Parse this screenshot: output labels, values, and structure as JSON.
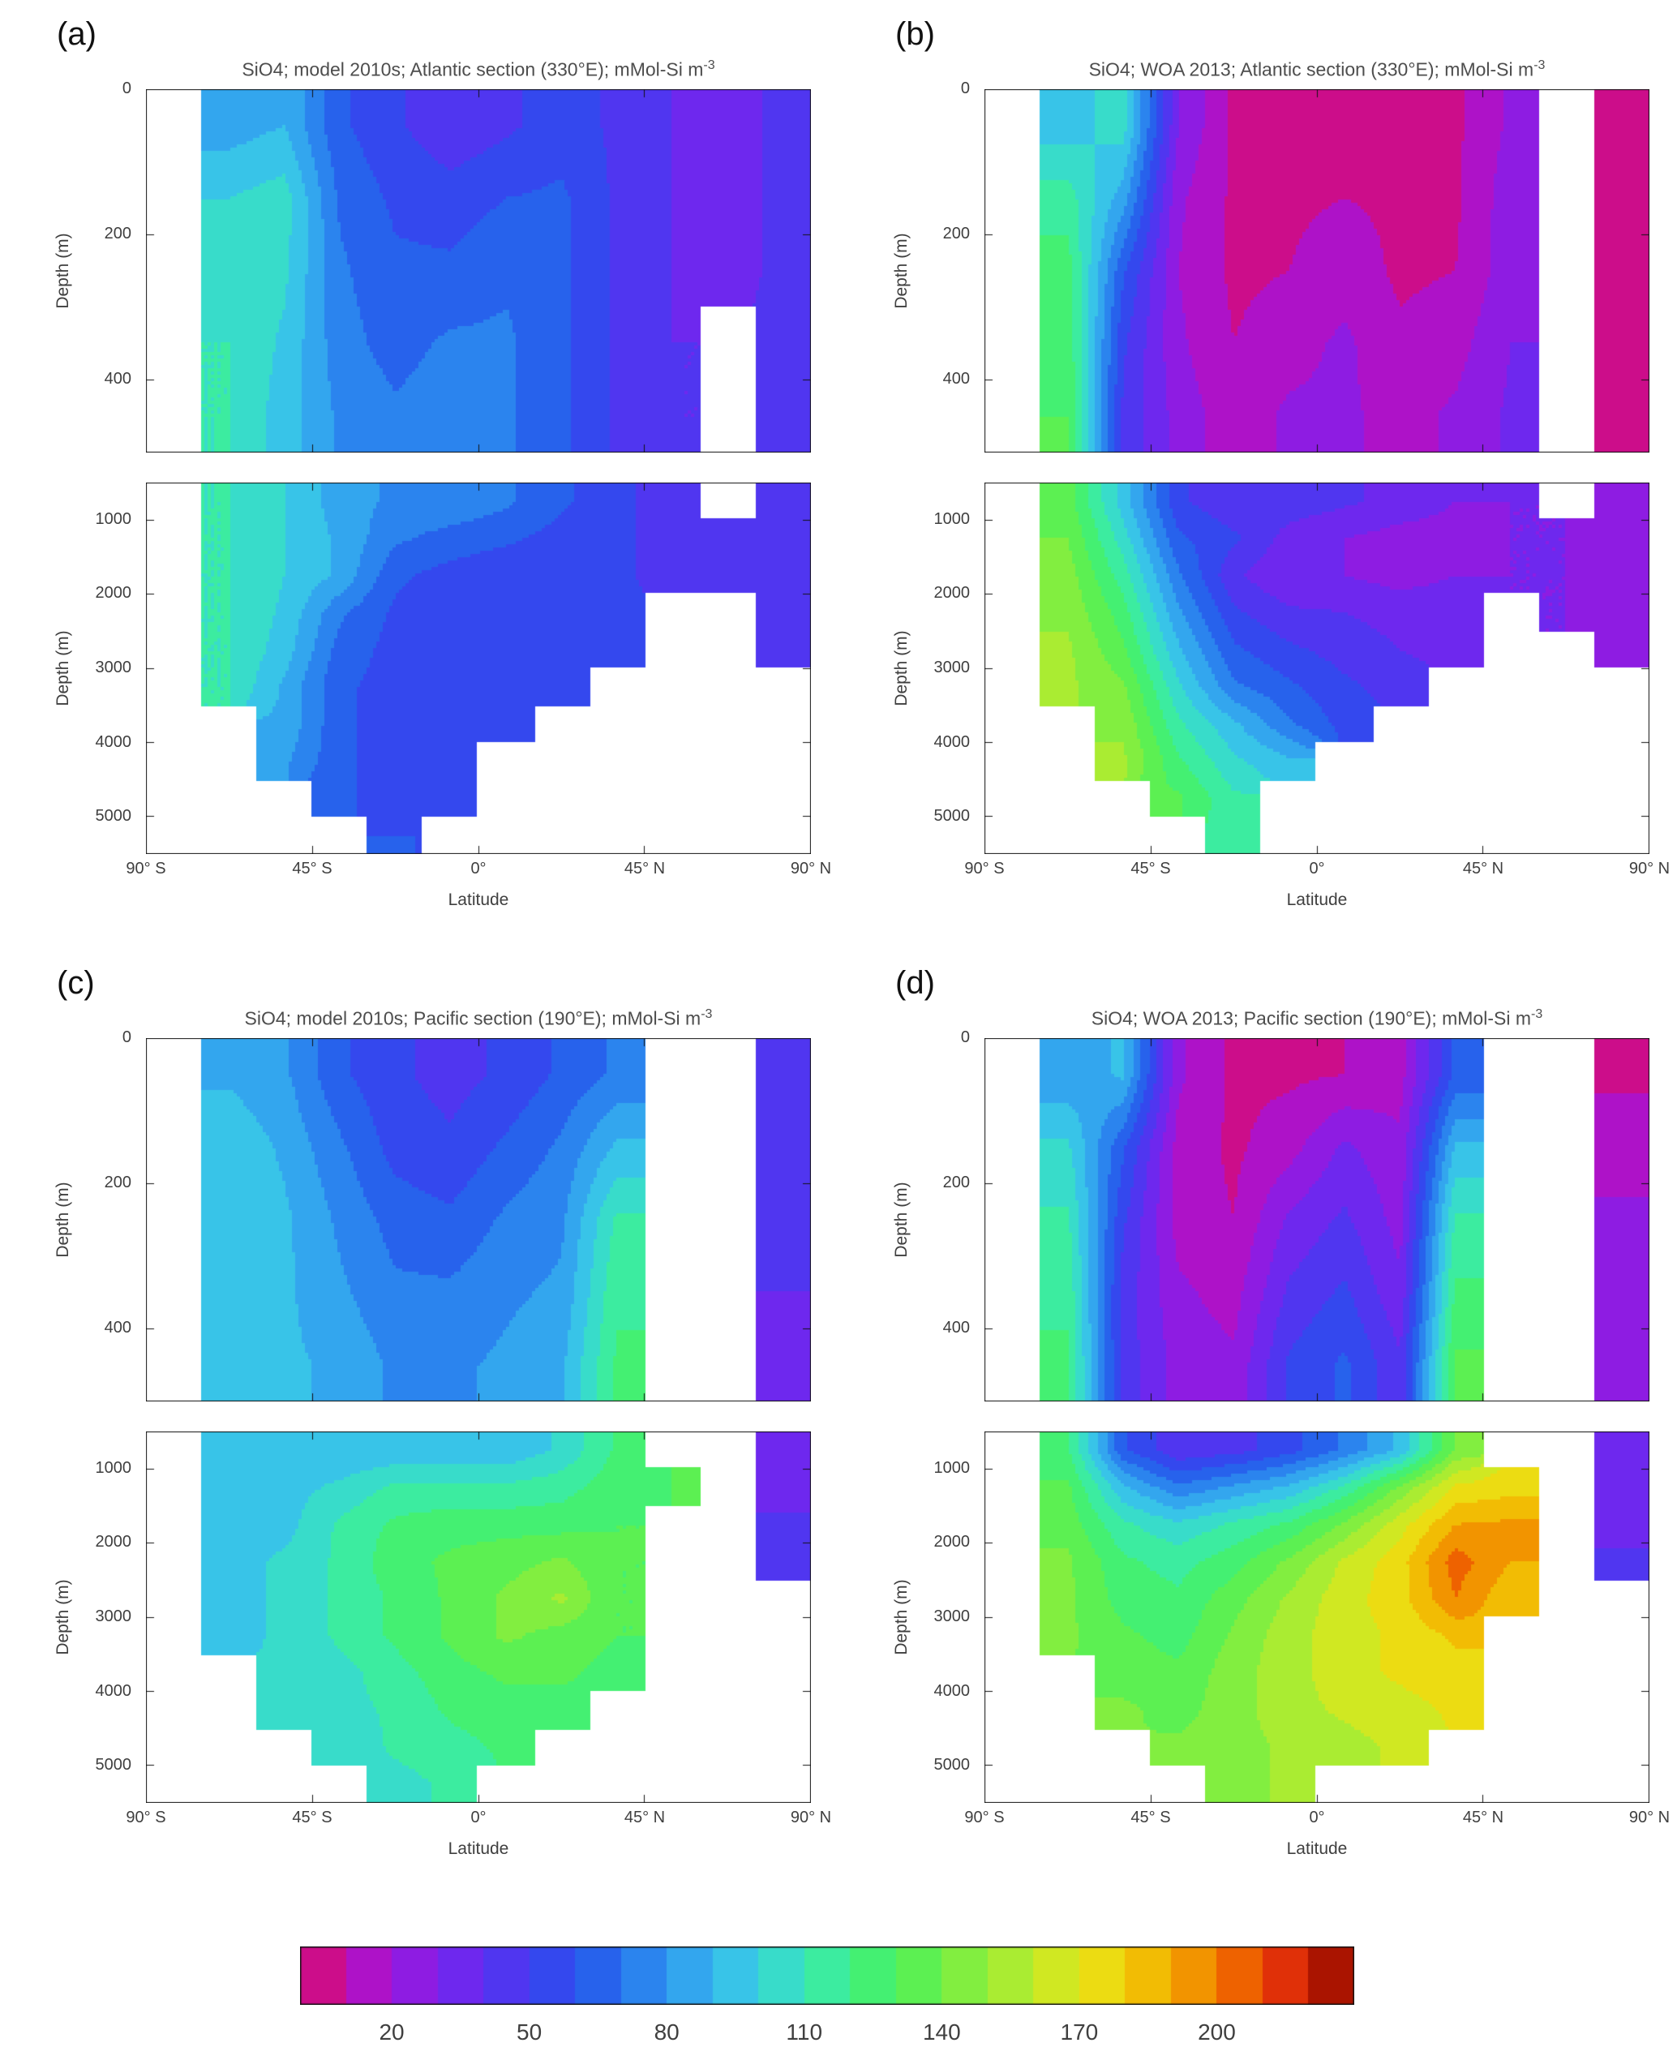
{
  "figure_name": "SiO4 ocean sections: model vs WOA 2013",
  "chart_data": {
    "type": "heatmap",
    "units": "mMol-Si m^-3",
    "colormap": {
      "range": [
        0,
        230
      ],
      "step": 10,
      "colors": [
        "#cc0d8a",
        "#ae12c8",
        "#8e1ce2",
        "#6e28ee",
        "#5036f0",
        "#3448ee",
        "#2762ec",
        "#2b84ee",
        "#33a6ee",
        "#38c4e8",
        "#38dcca",
        "#3ceca0",
        "#44f072",
        "#5cf052",
        "#82ee40",
        "#aaec32",
        "#d0e822",
        "#ecdc12",
        "#f2bc04",
        "#f29400",
        "#ee6200",
        "#e03008",
        "#aa1400"
      ]
    },
    "x_axis": {
      "label": "Latitude",
      "range": [
        -90,
        90
      ],
      "ticks": [
        {
          "value": -90,
          "label": "90° S"
        },
        {
          "value": -45,
          "label": "45° S"
        },
        {
          "value": 0,
          "label": "0°"
        },
        {
          "value": 45,
          "label": "45° N"
        },
        {
          "value": 90,
          "label": "90° N"
        }
      ],
      "lat_centers": [
        -82.5,
        -67.5,
        -52.5,
        -37.5,
        -22.5,
        -7.5,
        7.5,
        22.5,
        37.5,
        52.5,
        67.5,
        82.5
      ]
    },
    "y_axis": {
      "label": "Depth (m)",
      "upper_range": [
        0,
        500
      ],
      "upper_ticks": [
        0,
        200,
        400
      ],
      "upper_depth_centers": [
        50,
        150,
        250,
        350,
        450
      ],
      "lower_range": [
        500,
        5500
      ],
      "lower_ticks": [
        1000,
        2000,
        3000,
        4000,
        5000
      ],
      "lower_depth_centers": [
        750,
        1250,
        1750,
        2250,
        2750,
        3250,
        3750,
        4250,
        4750,
        5250
      ]
    },
    "panels": [
      {
        "id": "a",
        "label": "(a)",
        "title": "SiO4; model 2010s; Atlantic section (330°E); mMol-Si m",
        "title_sup": "-3",
        "upper_values": [
          [
            null,
            85,
            90,
            62,
            52,
            42,
            48,
            55,
            48,
            40,
            32,
            45
          ],
          [
            null,
            100,
            105,
            68,
            58,
            55,
            60,
            62,
            48,
            40,
            32,
            45
          ],
          [
            null,
            108,
            102,
            72,
            62,
            62,
            68,
            62,
            48,
            40,
            32,
            45
          ],
          [
            null,
            110,
            98,
            74,
            66,
            72,
            72,
            62,
            48,
            40,
            null,
            45
          ],
          [
            null,
            110,
            95,
            78,
            72,
            76,
            72,
            62,
            48,
            40,
            null,
            45
          ]
        ],
        "lower_values": [
          [
            null,
            110,
            100,
            85,
            78,
            78,
            72,
            62,
            52,
            46,
            null,
            42
          ],
          [
            null,
            110,
            100,
            88,
            72,
            66,
            62,
            56,
            52,
            46,
            50,
            42
          ],
          [
            null,
            110,
            100,
            88,
            62,
            56,
            52,
            52,
            52,
            46,
            50,
            42
          ],
          [
            null,
            110,
            98,
            72,
            58,
            52,
            52,
            52,
            52,
            null,
            null,
            42
          ],
          [
            null,
            110,
            95,
            66,
            56,
            52,
            52,
            52,
            52,
            null,
            null,
            42
          ],
          [
            null,
            110,
            88,
            62,
            56,
            52,
            52,
            52,
            null,
            null,
            null,
            null
          ],
          [
            null,
            null,
            88,
            62,
            56,
            52,
            52,
            null,
            null,
            null,
            null,
            null
          ],
          [
            null,
            null,
            82,
            62,
            56,
            56,
            null,
            null,
            null,
            null,
            null,
            null
          ],
          [
            null,
            null,
            null,
            62,
            56,
            56,
            null,
            null,
            null,
            null,
            null,
            null
          ],
          [
            null,
            null,
            null,
            null,
            60,
            null,
            null,
            null,
            null,
            null,
            null,
            null
          ]
        ]
      },
      {
        "id": "b",
        "label": "(b)",
        "title": "SiO4; WOA 2013; Atlantic section (330°E); mMol-Si m",
        "title_sup": "-3",
        "upper_values": [
          [
            null,
            95,
            105,
            30,
            8,
            8,
            8,
            8,
            8,
            22,
            null,
            8
          ],
          [
            null,
            115,
            85,
            22,
            8,
            8,
            10,
            8,
            8,
            26,
            null,
            8
          ],
          [
            null,
            125,
            62,
            20,
            8,
            10,
            16,
            8,
            10,
            26,
            null,
            8
          ],
          [
            null,
            128,
            52,
            22,
            10,
            16,
            22,
            12,
            16,
            30,
            null,
            8
          ],
          [
            null,
            130,
            48,
            26,
            14,
            22,
            22,
            16,
            22,
            32,
            null,
            8
          ]
        ],
        "lower_values": [
          [
            null,
            135,
            95,
            52,
            42,
            46,
            42,
            36,
            30,
            30,
            null,
            22
          ],
          [
            null,
            140,
            105,
            62,
            52,
            36,
            30,
            26,
            26,
            30,
            30,
            22
          ],
          [
            null,
            145,
            115,
            72,
            42,
            30,
            30,
            26,
            30,
            30,
            30,
            22
          ],
          [
            null,
            148,
            125,
            82,
            52,
            42,
            40,
            36,
            36,
            null,
            30,
            22
          ],
          [
            null,
            152,
            132,
            92,
            62,
            52,
            46,
            40,
            36,
            null,
            null,
            26
          ],
          [
            null,
            152,
            142,
            102,
            72,
            62,
            52,
            46,
            null,
            null,
            null,
            null
          ],
          [
            null,
            null,
            148,
            112,
            92,
            72,
            56,
            null,
            null,
            null,
            null,
            null
          ],
          [
            null,
            null,
            152,
            122,
            102,
            92,
            null,
            null,
            null,
            null,
            null,
            null
          ],
          [
            null,
            null,
            null,
            132,
            112,
            null,
            null,
            null,
            null,
            null,
            null,
            null
          ],
          [
            null,
            null,
            null,
            null,
            118,
            null,
            null,
            null,
            null,
            null,
            null,
            null
          ]
        ]
      },
      {
        "id": "c",
        "label": "(c)",
        "title": "SiO4; model 2010s; Pacific section (190°E); mMol-Si m",
        "title_sup": "-3",
        "upper_values": [
          [
            null,
            88,
            82,
            62,
            52,
            46,
            52,
            62,
            72,
            null,
            null,
            45
          ],
          [
            null,
            98,
            88,
            72,
            56,
            52,
            62,
            72,
            92,
            null,
            null,
            42
          ],
          [
            null,
            98,
            92,
            78,
            66,
            62,
            72,
            78,
            112,
            null,
            null,
            42
          ],
          [
            null,
            98,
            92,
            82,
            72,
            72,
            78,
            82,
            118,
            null,
            null,
            40
          ],
          [
            null,
            98,
            92,
            88,
            78,
            78,
            82,
            88,
            122,
            null,
            null,
            38
          ]
        ],
        "lower_values": [
          [
            null,
            96,
            96,
            92,
            92,
            92,
            92,
            102,
            122,
            null,
            null,
            36
          ],
          [
            null,
            96,
            96,
            102,
            112,
            112,
            112,
            116,
            126,
            130,
            null,
            36
          ],
          [
            null,
            96,
            96,
            112,
            122,
            126,
            126,
            126,
            130,
            null,
            null,
            42
          ],
          [
            null,
            96,
            102,
            112,
            126,
            132,
            136,
            142,
            130,
            null,
            null,
            42
          ],
          [
            null,
            96,
            102,
            112,
            122,
            132,
            142,
            152,
            130,
            null,
            null,
            null
          ],
          [
            null,
            96,
            102,
            112,
            122,
            132,
            142,
            136,
            130,
            null,
            null,
            null
          ],
          [
            null,
            null,
            102,
            106,
            116,
            126,
            132,
            132,
            126,
            null,
            null,
            null
          ],
          [
            null,
            null,
            102,
            106,
            112,
            122,
            126,
            126,
            null,
            null,
            null,
            null
          ],
          [
            null,
            null,
            null,
            102,
            112,
            116,
            122,
            null,
            null,
            null,
            null,
            null
          ],
          [
            null,
            null,
            null,
            null,
            106,
            112,
            null,
            null,
            null,
            null,
            null,
            null
          ]
        ]
      },
      {
        "id": "d",
        "label": "(d)",
        "title": "SiO4; WOA 2013; Pacific section (190°E); mMol-Si m",
        "title_sup": "-3",
        "upper_values": [
          [
            null,
            82,
            92,
            22,
            8,
            8,
            10,
            16,
            62,
            null,
            null,
            8
          ],
          [
            null,
            102,
            62,
            16,
            8,
            16,
            32,
            22,
            92,
            null,
            null,
            16
          ],
          [
            null,
            112,
            52,
            16,
            10,
            32,
            42,
            26,
            112,
            null,
            null,
            22
          ],
          [
            null,
            118,
            46,
            22,
            16,
            42,
            52,
            32,
            122,
            null,
            null,
            22
          ],
          [
            null,
            122,
            46,
            26,
            22,
            52,
            62,
            42,
            132,
            null,
            null,
            26
          ]
        ],
        "lower_values": [
          [
            null,
            122,
            62,
            42,
            46,
            56,
            72,
            92,
            142,
            null,
            null,
            32
          ],
          [
            null,
            132,
            92,
            72,
            82,
            92,
            112,
            142,
            172,
            176,
            null,
            32
          ],
          [
            null,
            136,
            112,
            102,
            112,
            122,
            142,
            166,
            190,
            192,
            null,
            36
          ],
          [
            null,
            142,
            122,
            116,
            126,
            142,
            162,
            176,
            205,
            190,
            null,
            42
          ],
          [
            null,
            142,
            126,
            122,
            136,
            152,
            166,
            176,
            200,
            182,
            null,
            null
          ],
          [
            null,
            142,
            132,
            126,
            142,
            156,
            166,
            172,
            182,
            null,
            null,
            null
          ],
          [
            null,
            null,
            136,
            132,
            146,
            156,
            166,
            172,
            176,
            null,
            null,
            null
          ],
          [
            null,
            null,
            142,
            136,
            146,
            156,
            162,
            166,
            172,
            null,
            null,
            null
          ],
          [
            null,
            null,
            null,
            142,
            146,
            152,
            156,
            162,
            null,
            null,
            null,
            null
          ],
          [
            null,
            null,
            null,
            null,
            146,
            152,
            null,
            null,
            null,
            null,
            null,
            null
          ]
        ]
      }
    ],
    "colorbar": {
      "ticks": [
        20,
        50,
        80,
        110,
        140,
        170,
        200
      ]
    }
  }
}
